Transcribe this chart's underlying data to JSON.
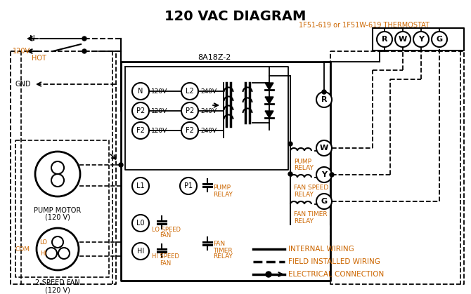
{
  "title": "120 VAC DIAGRAM",
  "title_fontsize": 14,
  "bg_color": "#ffffff",
  "line_color": "#000000",
  "orange_color": "#cc6600",
  "thermostat_label": "1F51-619 or 1F51W-619 THERMOSTAT",
  "board_label": "8A18Z-2",
  "legend_items": [
    {
      "label": "INTERNAL WIRING"
    },
    {
      "label": "FIELD INSTALLED WIRING"
    },
    {
      "label": "ELECTRICAL CONNECTION"
    }
  ]
}
